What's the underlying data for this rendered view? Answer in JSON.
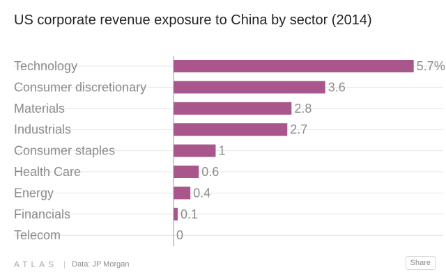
{
  "chart_data": {
    "type": "bar",
    "orientation": "horizontal",
    "title": "US corporate revenue exposure to China by sector (2014)",
    "categories": [
      "Technology",
      "Consumer discretionary",
      "Materials",
      "Industrials",
      "Consumer staples",
      "Health Care",
      "Energy",
      "Financials",
      "Telecom"
    ],
    "values": [
      5.7,
      3.6,
      2.8,
      2.7,
      1,
      0.6,
      0.4,
      0.1,
      0
    ],
    "value_labels": [
      "5.7%",
      "3.6",
      "2.8",
      "2.7",
      "1",
      "0.6",
      "0.4",
      "0.1",
      "0"
    ],
    "xlim": [
      0,
      6.4
    ],
    "xlabel": "",
    "ylabel": "",
    "grid": true,
    "bar_color": "#a8568c"
  },
  "footer": {
    "logo": "ATLAS",
    "source": "Data: JP Morgan",
    "share_label": "Share"
  },
  "colors": {
    "label_text": "#8c8c8c",
    "gridline": "#e6e6e6",
    "axis": "#999999"
  }
}
